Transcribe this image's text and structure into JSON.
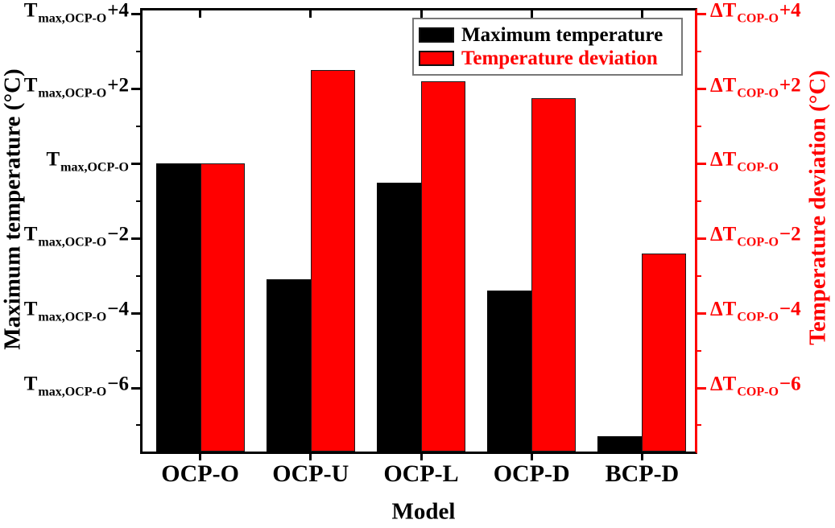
{
  "chart_data": {
    "type": "bar",
    "title": "",
    "xlabel": "Model",
    "categories": [
      "OCP-O",
      "OCP-U",
      "OCP-L",
      "OCP-D",
      "BCP-D"
    ],
    "series": [
      {
        "name": "Maximum temperature",
        "axis": "left",
        "color": "#000000",
        "values": [
          0,
          -3.1,
          -0.5,
          -3.4,
          -7.3
        ],
        "values_unit": "°C relative to T_max,OCP-O"
      },
      {
        "name": "Temperature deviation",
        "axis": "right",
        "color": "#ff0000",
        "values": [
          0,
          2.5,
          2.2,
          1.75,
          -2.4
        ],
        "values_unit": "°C relative to ΔT_COP-O"
      }
    ],
    "y_range": [
      -7.7,
      4.1
    ],
    "grid": "off",
    "left_axis": {
      "title": "Maximum temperature (°C)",
      "color": "#000000",
      "tick_prefix": "T",
      "tick_subscript": "max,OCP-O",
      "major_ticks": [
        {
          "value": 4,
          "suffix": "+4"
        },
        {
          "value": 2,
          "suffix": "+2"
        },
        {
          "value": 0,
          "suffix": ""
        },
        {
          "value": -2,
          "suffix": "−2"
        },
        {
          "value": -4,
          "suffix": "−4"
        },
        {
          "value": -6,
          "suffix": "−6"
        }
      ],
      "minor_ticks": [
        3,
        1,
        -1,
        -3,
        -5,
        -7
      ]
    },
    "right_axis": {
      "title": "Temperature deviation (°C)",
      "color": "#ff0000",
      "tick_prefix": "ΔT",
      "tick_subscript": "COP-O",
      "major_ticks": [
        {
          "value": 4,
          "suffix": "+4"
        },
        {
          "value": 2,
          "suffix": "+2"
        },
        {
          "value": 0,
          "suffix": ""
        },
        {
          "value": -2,
          "suffix": "−2"
        },
        {
          "value": -4,
          "suffix": "−4"
        },
        {
          "value": -6,
          "suffix": "−6"
        }
      ],
      "minor_ticks": [
        3,
        1,
        -1,
        -3,
        -5,
        -7
      ]
    },
    "legend": {
      "position": "top-right",
      "border_color": "#787878",
      "items": [
        {
          "label": "Maximum temperature",
          "swatch_color": "#000000",
          "text_color": "#000000"
        },
        {
          "label": "Temperature deviation",
          "swatch_color": "#ff0000",
          "text_color": "#ff0000"
        }
      ]
    },
    "background": "#ffffff"
  }
}
